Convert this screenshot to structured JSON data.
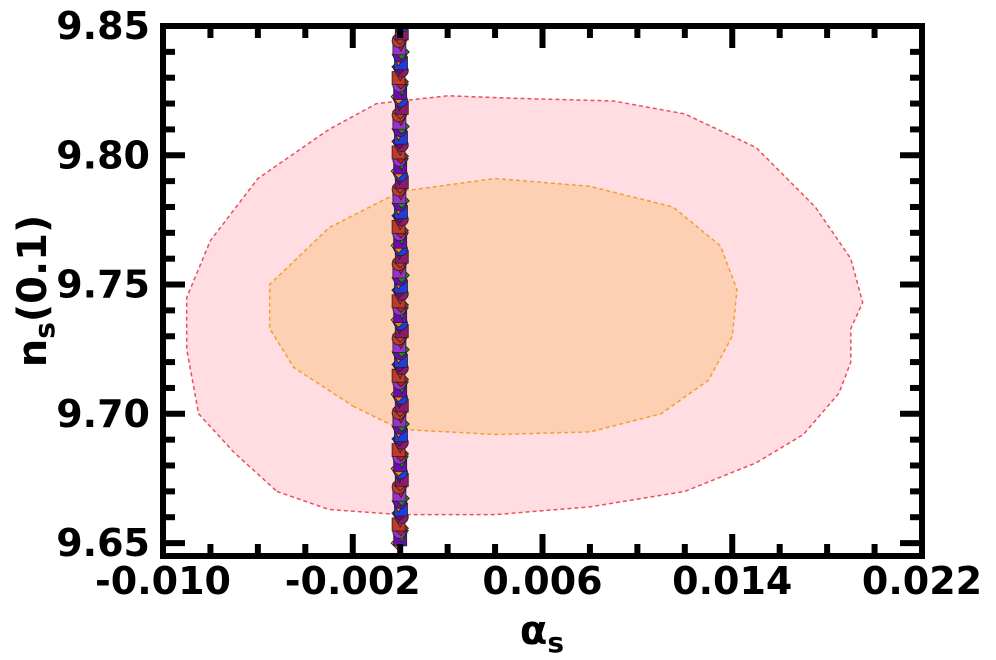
{
  "chart_data": {
    "type": "scatter",
    "title": "",
    "xlabel": "α",
    "xlabel_sub": "s",
    "ylabel_main": "n",
    "ylabel_sub": "s",
    "ylabel_suffix": "(0.1)",
    "xlim": [
      -0.01,
      0.022
    ],
    "ylim": [
      9.645,
      9.85
    ],
    "xticks": [
      -0.01,
      -0.002,
      0.006,
      0.014,
      0.022
    ],
    "xtick_labels": [
      "-0.010",
      "-0.002",
      "0.006",
      "0.014",
      "0.022"
    ],
    "yticks": [
      9.65,
      9.7,
      9.75,
      9.8,
      9.85
    ],
    "ytick_labels": [
      "9.65",
      "9.70",
      "9.75",
      "9.80",
      "9.85"
    ],
    "grid": false,
    "legend": "none",
    "contours": [
      {
        "level": "outer",
        "fill": "#ffdde3",
        "stroke": "#e8505b",
        "points": [
          [
            -0.0052,
            9.67
          ],
          [
            -0.003,
            9.663
          ],
          [
            0.0,
            9.661
          ],
          [
            0.004,
            9.661
          ],
          [
            0.008,
            9.664
          ],
          [
            0.012,
            9.67
          ],
          [
            0.015,
            9.681
          ],
          [
            0.017,
            9.692
          ],
          [
            0.0185,
            9.708
          ],
          [
            0.019,
            9.72
          ],
          [
            0.019,
            9.733
          ],
          [
            0.0195,
            9.743
          ],
          [
            0.019,
            9.76
          ],
          [
            0.0175,
            9.78
          ],
          [
            0.015,
            9.803
          ],
          [
            0.012,
            9.816
          ],
          [
            0.009,
            9.821
          ],
          [
            0.005,
            9.822
          ],
          [
            0.002,
            9.823
          ],
          [
            -0.001,
            9.82
          ],
          [
            -0.003,
            9.81
          ],
          [
            -0.006,
            9.791
          ],
          [
            -0.008,
            9.767
          ],
          [
            -0.009,
            9.745
          ],
          [
            -0.009,
            9.725
          ],
          [
            -0.0085,
            9.7
          ],
          [
            -0.007,
            9.685
          ]
        ]
      },
      {
        "level": "inner",
        "fill": "#fdd0b4",
        "stroke": "#f0a030",
        "points": [
          [
            -0.002,
            9.703
          ],
          [
            0.0,
            9.694
          ],
          [
            0.004,
            9.692
          ],
          [
            0.008,
            9.693
          ],
          [
            0.011,
            9.7
          ],
          [
            0.013,
            9.713
          ],
          [
            0.014,
            9.73
          ],
          [
            0.0142,
            9.748
          ],
          [
            0.0135,
            9.765
          ],
          [
            0.0115,
            9.78
          ],
          [
            0.008,
            9.788
          ],
          [
            0.004,
            9.791
          ],
          [
            0.0,
            9.786
          ],
          [
            -0.003,
            9.772
          ],
          [
            -0.0055,
            9.75
          ],
          [
            -0.0055,
            9.733
          ],
          [
            -0.0045,
            9.718
          ]
        ]
      }
    ],
    "scatter": {
      "x": 0.0,
      "y_min": 9.65,
      "y_max": 9.85,
      "count": 140,
      "colors": [
        "#6a0dad",
        "#b22222",
        "#8b1a6b",
        "#ff7f0e",
        "#9932cc",
        "#cd3333",
        "#1f3ddb",
        "#228b22",
        "#c0392b",
        "#800080"
      ],
      "markers": [
        "circle",
        "diamond",
        "square",
        "triangle-down"
      ]
    }
  }
}
